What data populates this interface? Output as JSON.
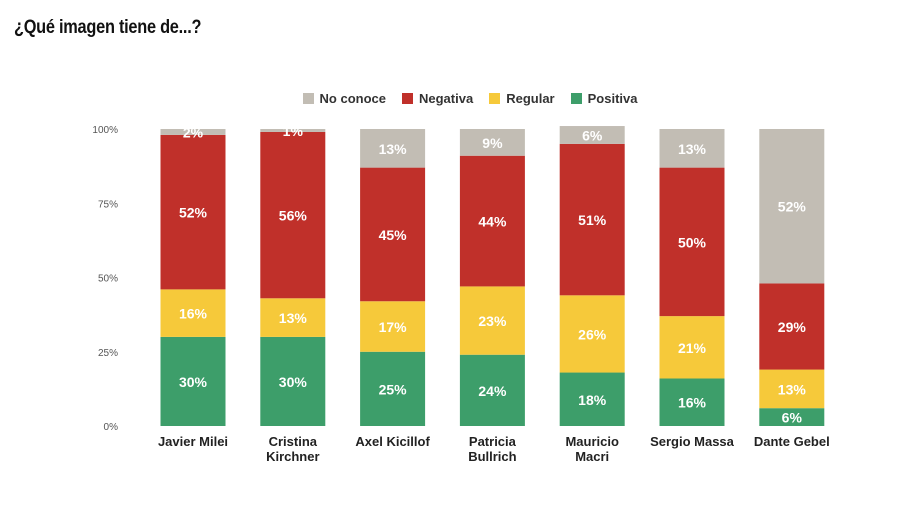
{
  "title": "¿Qué imagen tiene de...?",
  "chart_data": {
    "type": "bar",
    "stacked": true,
    "title": "",
    "xlabel": "",
    "ylabel": "",
    "ylim": [
      0,
      100
    ],
    "yticks": [
      "0%",
      "25%",
      "50%",
      "75%",
      "100%"
    ],
    "ytick_values": [
      0,
      25,
      50,
      75,
      100
    ],
    "legend_position": "top-center",
    "grid": false,
    "categories": [
      [
        "Javier Milei"
      ],
      [
        "Cristina",
        "Kirchner"
      ],
      [
        "Axel Kicillof"
      ],
      [
        "Patricia",
        "Bullrich"
      ],
      [
        "Mauricio",
        "Macri"
      ],
      [
        "Sergio Massa"
      ],
      [
        "Dante Gebel"
      ]
    ],
    "series": [
      {
        "name": "Positiva",
        "color": "#3d9e6a",
        "values": [
          30,
          30,
          25,
          24,
          18,
          16,
          6
        ],
        "labels": [
          "30%",
          "30%",
          "25%",
          "24%",
          "18%",
          "16%",
          "6%"
        ]
      },
      {
        "name": "Regular",
        "color": "#f6c93a",
        "values": [
          16,
          13,
          17,
          23,
          26,
          21,
          13
        ],
        "labels": [
          "16%",
          "13%",
          "17%",
          "23%",
          "26%",
          "21%",
          "13%"
        ]
      },
      {
        "name": "Negativa",
        "color": "#c0302a",
        "values": [
          52,
          56,
          45,
          44,
          51,
          50,
          29
        ],
        "labels": [
          "52%",
          "56%",
          "45%",
          "44%",
          "51%",
          "50%",
          "29%"
        ]
      },
      {
        "name": "No conoce",
        "color": "#c2bdb4",
        "values": [
          2,
          1,
          13,
          9,
          6,
          13,
          52
        ],
        "labels": [
          "2%",
          "1%",
          "13%",
          "9%",
          "6%",
          "13%",
          "52%"
        ]
      }
    ],
    "legend_order": [
      "No conoce",
      "Negativa",
      "Regular",
      "Positiva"
    ]
  }
}
